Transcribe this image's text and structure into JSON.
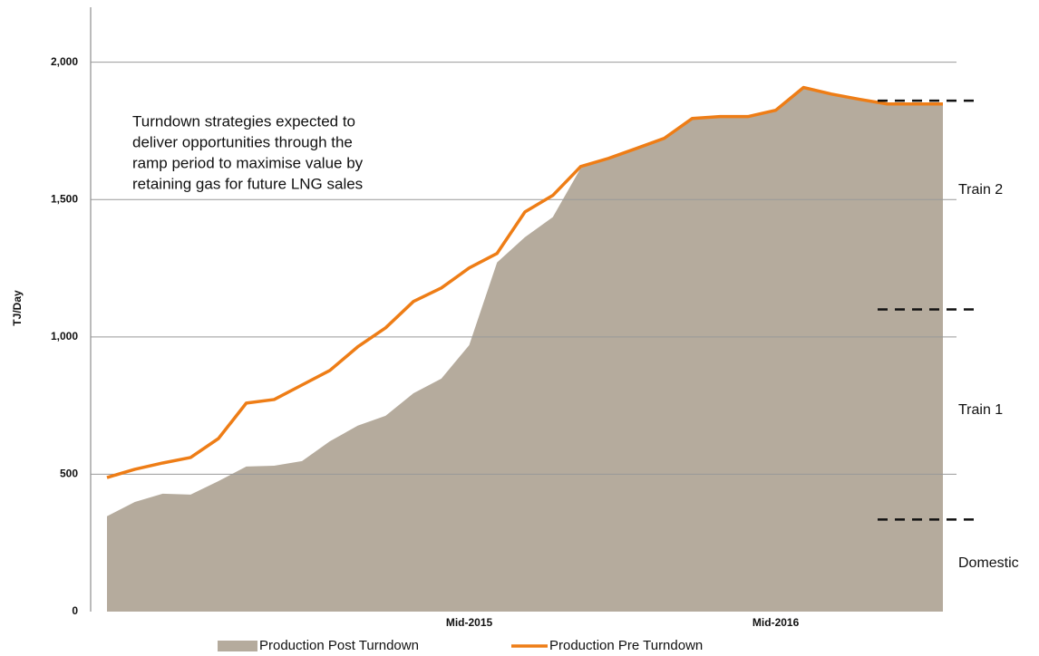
{
  "chart_data": {
    "type": "line",
    "y_label": "TJ/Day",
    "annotation": [
      "Turndown strategies expected to",
      "deliver opportunities through the",
      "ramp period to maximise value by",
      "retaining gas for future LNG sales"
    ],
    "categories": [
      null,
      null,
      null,
      null,
      null,
      null,
      null,
      null,
      null,
      null,
      null,
      null,
      null,
      "Mid-2015",
      null,
      null,
      null,
      null,
      null,
      null,
      null,
      null,
      null,
      null,
      "Mid-2016",
      null,
      null,
      null,
      null,
      null,
      null
    ],
    "series": [
      {
        "name": "Production Post Turndown",
        "type": "area",
        "color": "#b5ab9d",
        "values": [
          347,
          399,
          429,
          426,
          475,
          528,
          531,
          548,
          620,
          677,
          713,
          795,
          848,
          970,
          1271,
          1363,
          1436,
          1614,
          1647,
          1686,
          1723,
          1795,
          1802,
          1802,
          1825,
          1908,
          1884,
          1865,
          1848,
          1848,
          1848
        ]
      },
      {
        "name": "Production Pre Turndown",
        "type": "line",
        "color": "#ee7d16",
        "values": [
          488,
          518,
          541,
          561,
          630,
          759,
          772,
          825,
          878,
          964,
          1033,
          1129,
          1178,
          1251,
          1304,
          1455,
          1515,
          1620,
          1650,
          1686,
          1723,
          1795,
          1802,
          1802,
          1825,
          1908,
          1884,
          1865,
          1848,
          1848,
          1848
        ]
      }
    ],
    "reference_lines": [
      {
        "value": 1860,
        "label": "Train 2"
      },
      {
        "value": 1100,
        "label": "Train 1"
      },
      {
        "value": 335,
        "label": "Domestic"
      }
    ],
    "ylim": [
      0,
      2200
    ],
    "yticks": [
      0,
      500,
      {
        "value": 1000,
        "label": "1,000"
      },
      {
        "value": 1500,
        "label": "1,500"
      },
      {
        "value": 2000,
        "label": "2,000"
      }
    ],
    "grid": true
  }
}
